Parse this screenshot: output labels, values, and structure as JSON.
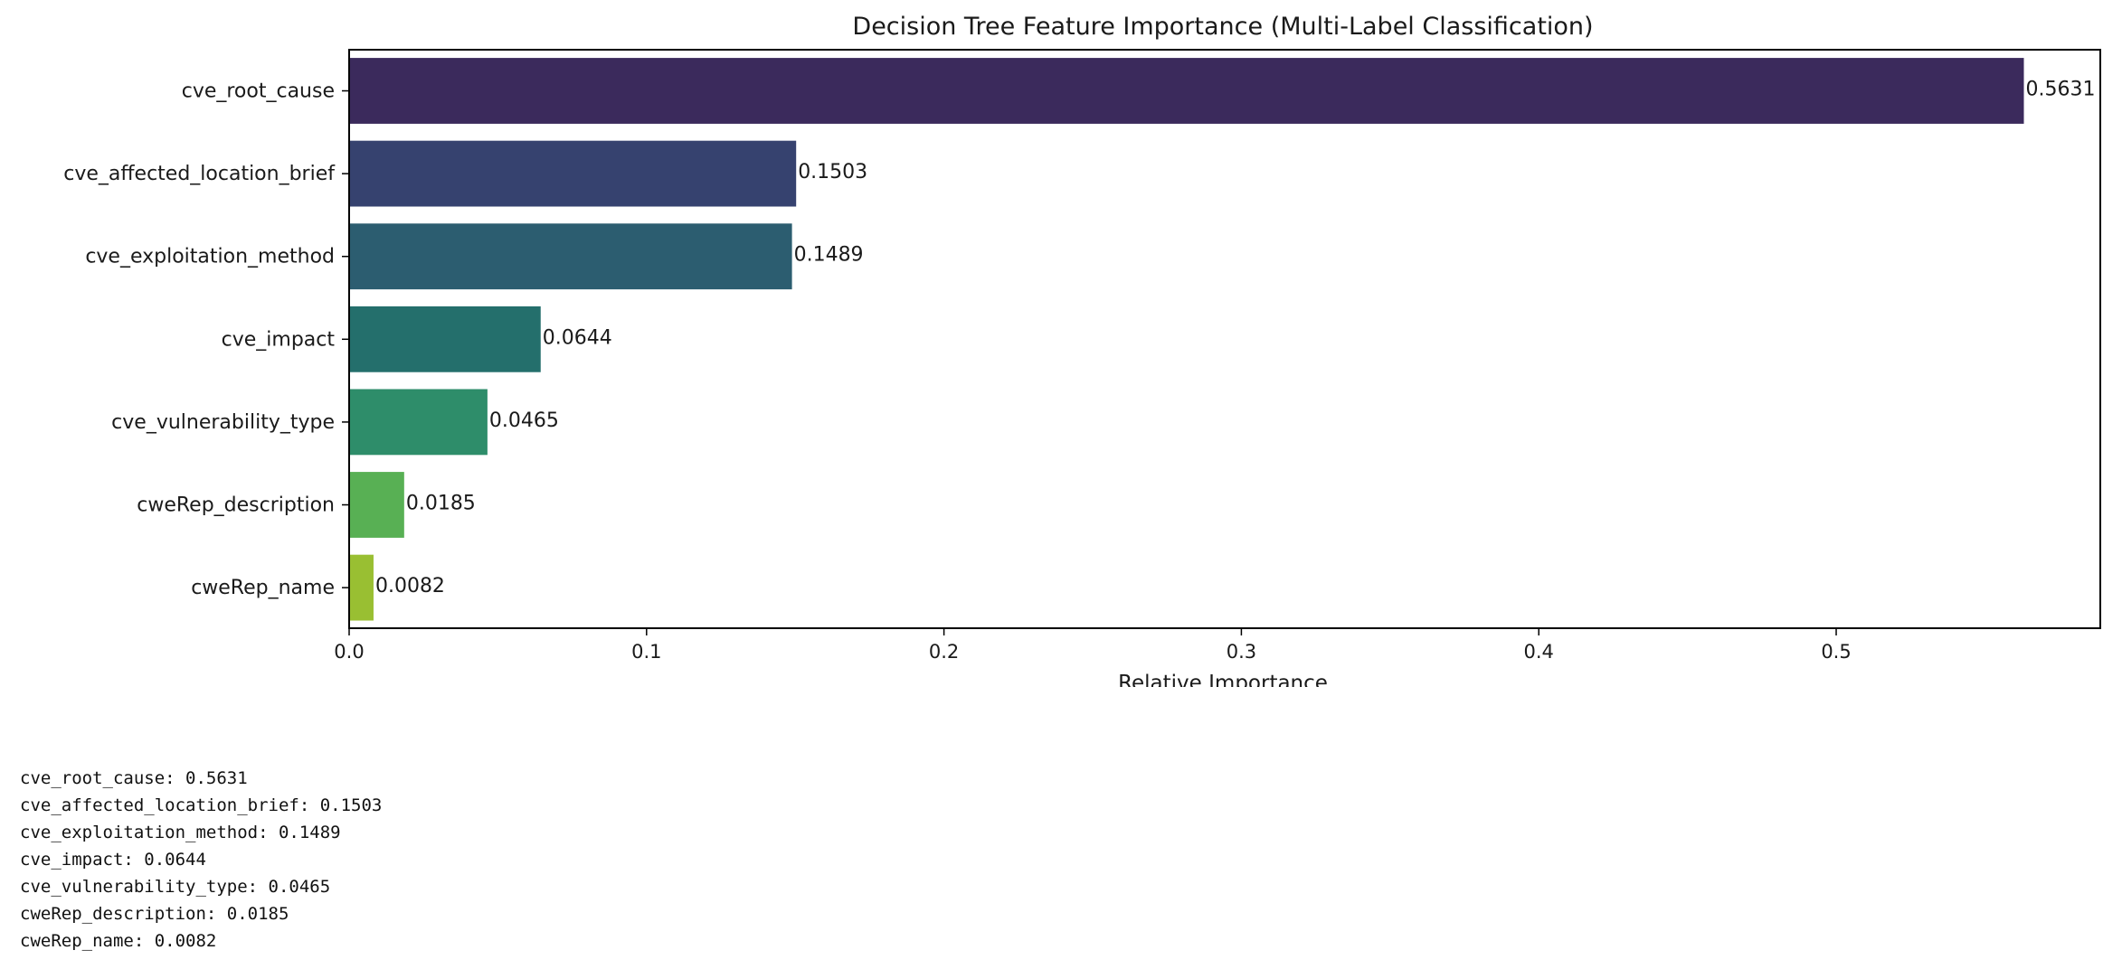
{
  "chart_data": {
    "type": "bar",
    "orientation": "horizontal",
    "title": "Decision Tree Feature Importance (Multi-Label Classification)",
    "xlabel": "Relative Importance",
    "ylabel": "",
    "xlim": [
      0,
      0.5888
    ],
    "xticks": [
      {
        "value": 0.0,
        "label": "0.0"
      },
      {
        "value": 0.1,
        "label": "0.1"
      },
      {
        "value": 0.2,
        "label": "0.2"
      },
      {
        "value": 0.3,
        "label": "0.3"
      },
      {
        "value": 0.4,
        "label": "0.4"
      },
      {
        "value": 0.5,
        "label": "0.5"
      }
    ],
    "grid": false,
    "categories": [
      "cve_root_cause",
      "cve_affected_location_brief",
      "cve_exploitation_method",
      "cve_impact",
      "cve_vulnerability_type",
      "cweRep_description",
      "cweRep_name"
    ],
    "values": [
      0.5631,
      0.1503,
      0.1489,
      0.0644,
      0.0465,
      0.0185,
      0.0082
    ],
    "value_labels": [
      "0.5631",
      "0.1503",
      "0.1489",
      "0.0644",
      "0.0465",
      "0.0185",
      "0.0082"
    ],
    "colors": [
      "#3b2a5c",
      "#36426f",
      "#2c5d70",
      "#246f6c",
      "#2e8d6a",
      "#58b054",
      "#99bf32"
    ]
  },
  "console_output": [
    "cve_root_cause: 0.5631",
    "cve_affected_location_brief: 0.1503",
    "cve_exploitation_method: 0.1489",
    "cve_impact: 0.0644",
    "cve_vulnerability_type: 0.0465",
    "cweRep_description: 0.0185",
    "cweRep_name: 0.0082"
  ]
}
